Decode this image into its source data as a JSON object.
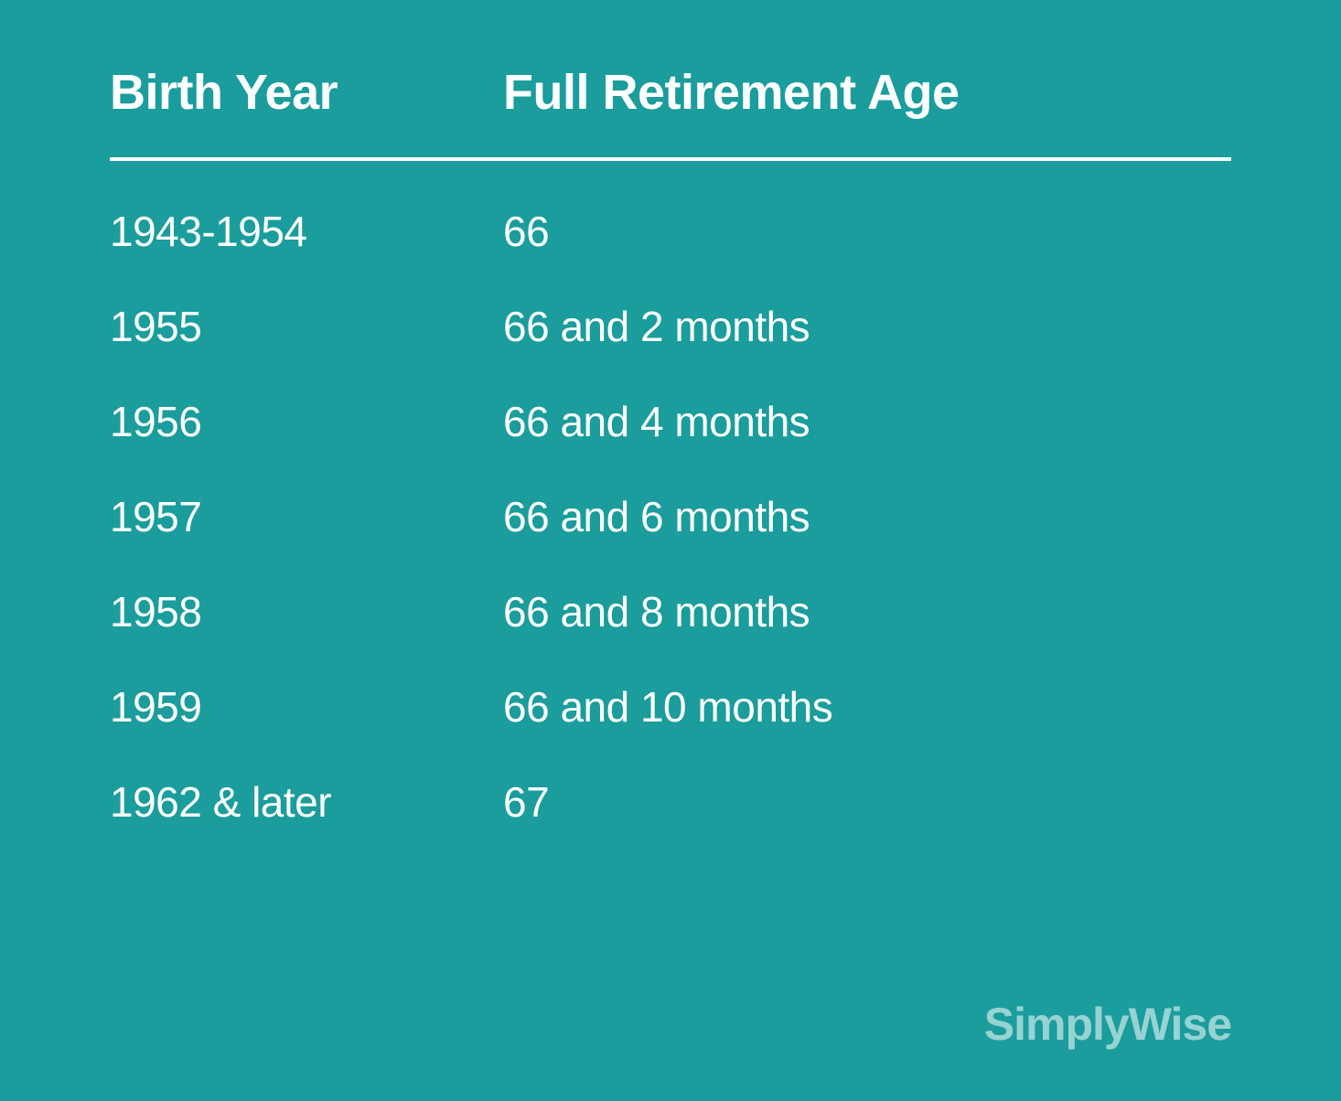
{
  "table": {
    "type": "table",
    "background_color": "#1a9d9c",
    "text_color": "#ffffff",
    "header_fontsize": 54,
    "header_fontweight": 700,
    "cell_fontsize": 46,
    "cell_fontweight": 400,
    "divider_color": "#ffffff",
    "divider_width": 4,
    "col1_width": 430,
    "row_gap": 50,
    "columns": [
      "Birth Year",
      "Full  Retirement Age"
    ],
    "rows": [
      [
        "1943-1954",
        "66"
      ],
      [
        "1955",
        "66 and 2 months"
      ],
      [
        "1956",
        "66 and 4 months"
      ],
      [
        "1957",
        "66 and 6 months"
      ],
      [
        "1958",
        "66 and 8 months"
      ],
      [
        "1959",
        "66 and 10 months"
      ],
      [
        "1962 & later",
        "67"
      ]
    ]
  },
  "brand": {
    "name": "SimplyWise",
    "color": "rgba(255,255,255,0.55)",
    "fontsize": 50,
    "fontweight": 700
  }
}
